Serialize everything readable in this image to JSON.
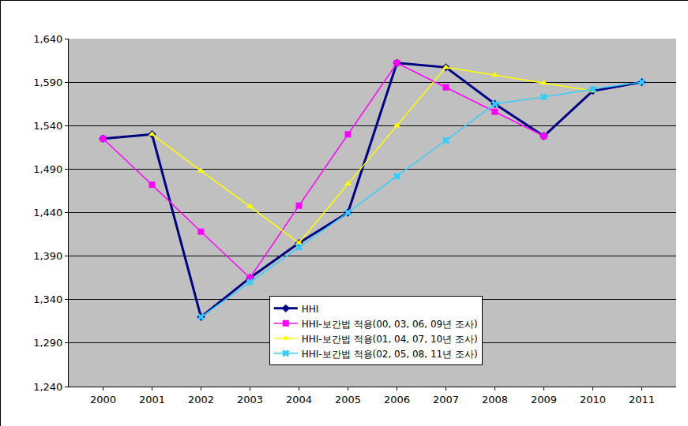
{
  "chart_data": {
    "type": "line",
    "categories": [
      "2000",
      "2001",
      "2002",
      "2003",
      "2004",
      "2005",
      "2006",
      "2007",
      "2008",
      "2009",
      "2010",
      "2011"
    ],
    "series": [
      {
        "name": "HHI",
        "color": "#000080",
        "marker": "diamond",
        "line_style": "solid",
        "values": [
          1525,
          1530,
          1320,
          1365,
          1405,
          1440,
          1612,
          1607,
          1565,
          1528,
          1580,
          1590
        ]
      },
      {
        "name": "HHI-보간법 적용(00, 03, 06, 09년 조사)",
        "color": "#ff00ff",
        "marker": "square",
        "line_style": "solid",
        "values": [
          1525,
          1472,
          1418,
          1365,
          1448,
          1530,
          1612,
          1584,
          1556,
          1528,
          null,
          null
        ]
      },
      {
        "name": "HHI-보간법 적용(01, 04, 07, 10년 조사)",
        "color": "#ffff00",
        "marker": "triangle-up",
        "line_style": "solid",
        "values": [
          null,
          1530,
          1488,
          1447,
          1405,
          1473,
          1540,
          1607,
          1598,
          1589,
          1580,
          null
        ]
      },
      {
        "name": "HHI-보간법 적용(02, 05, 08, 11년 조사)",
        "color": "#33ccff",
        "marker": "x",
        "line_style": "solid",
        "values": [
          null,
          null,
          1320,
          1360,
          1400,
          1440,
          1482,
          1523,
          1565,
          1573,
          1582,
          1590
        ]
      }
    ],
    "ylim": [
      1240,
      1640
    ],
    "yticks": [
      {
        "value": 1240,
        "label": "1,240"
      },
      {
        "value": 1290,
        "label": "1,290"
      },
      {
        "value": 1340,
        "label": "1,340"
      },
      {
        "value": 1390,
        "label": "1,390"
      },
      {
        "value": 1440,
        "label": "1,440"
      },
      {
        "value": 1490,
        "label": "1,490"
      },
      {
        "value": 1540,
        "label": "1,540"
      },
      {
        "value": 1590,
        "label": "1,590"
      },
      {
        "value": 1640,
        "label": "1,640"
      }
    ],
    "grid": true,
    "legend": "bottom-right"
  }
}
